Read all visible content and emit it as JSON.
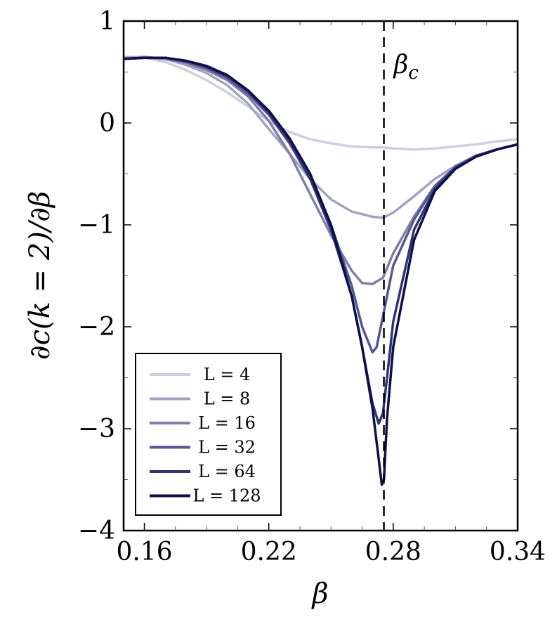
{
  "chart_data": {
    "type": "line",
    "xlabel": "β",
    "ylabel": "∂c(k = 2)/∂β",
    "xlim": [
      0.15,
      0.34
    ],
    "ylim": [
      -4,
      1
    ],
    "x_ticks": [
      0.16,
      0.22,
      0.28,
      0.34
    ],
    "x_tick_labels": [
      "0.16",
      "0.22",
      "0.28",
      "0.34"
    ],
    "y_ticks": [
      -4,
      -3,
      -2,
      -1,
      0,
      1
    ],
    "y_tick_labels": [
      "−4",
      "−3",
      "−2",
      "−1",
      "0",
      "1"
    ],
    "grid": false,
    "legend_position": "bottom-left",
    "annotation": {
      "text": "β",
      "subscript": "c",
      "x": 0.2755,
      "style": "dashed-vertical-line"
    },
    "series": [
      {
        "name": "L = 4",
        "color": "#cfcee0",
        "x": [
          0.15,
          0.16,
          0.17,
          0.18,
          0.19,
          0.2,
          0.21,
          0.22,
          0.23,
          0.24,
          0.25,
          0.26,
          0.27,
          0.275,
          0.28,
          0.29,
          0.3,
          0.31,
          0.32,
          0.33,
          0.34
        ],
        "y": [
          0.65,
          0.64,
          0.6,
          0.52,
          0.42,
          0.3,
          0.16,
          0.02,
          -0.09,
          -0.16,
          -0.2,
          -0.23,
          -0.24,
          -0.24,
          -0.25,
          -0.26,
          -0.25,
          -0.23,
          -0.21,
          -0.18,
          -0.16
        ]
      },
      {
        "name": "L = 8",
        "color": "#a3a2c0",
        "x": [
          0.15,
          0.16,
          0.17,
          0.18,
          0.19,
          0.2,
          0.21,
          0.22,
          0.23,
          0.24,
          0.25,
          0.26,
          0.27,
          0.275,
          0.28,
          0.29,
          0.3,
          0.31,
          0.32,
          0.33,
          0.34
        ],
        "y": [
          0.64,
          0.65,
          0.63,
          0.57,
          0.49,
          0.37,
          0.19,
          -0.06,
          -0.3,
          -0.55,
          -0.75,
          -0.87,
          -0.92,
          -0.93,
          -0.88,
          -0.72,
          -0.55,
          -0.42,
          -0.32,
          -0.26,
          -0.21
        ]
      },
      {
        "name": "L = 16",
        "color": "#7f7ea8",
        "x": [
          0.15,
          0.16,
          0.17,
          0.18,
          0.19,
          0.2,
          0.21,
          0.22,
          0.23,
          0.24,
          0.25,
          0.26,
          0.265,
          0.27,
          0.275,
          0.28,
          0.29,
          0.3,
          0.31,
          0.32,
          0.33,
          0.34
        ],
        "y": [
          0.63,
          0.64,
          0.63,
          0.59,
          0.52,
          0.42,
          0.26,
          0.02,
          -0.3,
          -0.7,
          -1.1,
          -1.45,
          -1.57,
          -1.58,
          -1.52,
          -1.28,
          -0.92,
          -0.62,
          -0.43,
          -0.32,
          -0.26,
          -0.21
        ]
      },
      {
        "name": "L = 32",
        "color": "#575790",
        "x": [
          0.15,
          0.16,
          0.17,
          0.18,
          0.19,
          0.2,
          0.21,
          0.22,
          0.23,
          0.24,
          0.25,
          0.26,
          0.265,
          0.27,
          0.272,
          0.275,
          0.278,
          0.28,
          0.29,
          0.3,
          0.31,
          0.32,
          0.33,
          0.34
        ],
        "y": [
          0.63,
          0.64,
          0.64,
          0.6,
          0.54,
          0.44,
          0.29,
          0.08,
          -0.2,
          -0.55,
          -1.0,
          -1.6,
          -2.0,
          -2.25,
          -2.2,
          -1.9,
          -1.6,
          -1.4,
          -0.95,
          -0.62,
          -0.43,
          -0.32,
          -0.26,
          -0.21
        ]
      },
      {
        "name": "L = 64",
        "color": "#33336f",
        "x": [
          0.15,
          0.16,
          0.17,
          0.18,
          0.19,
          0.2,
          0.21,
          0.22,
          0.23,
          0.24,
          0.25,
          0.26,
          0.265,
          0.27,
          0.273,
          0.275,
          0.277,
          0.28,
          0.29,
          0.3,
          0.31,
          0.32,
          0.33,
          0.34
        ],
        "y": [
          0.63,
          0.64,
          0.64,
          0.61,
          0.55,
          0.46,
          0.31,
          0.1,
          -0.18,
          -0.55,
          -1.05,
          -1.7,
          -2.2,
          -2.75,
          -2.95,
          -2.85,
          -2.5,
          -1.95,
          -1.05,
          -0.65,
          -0.44,
          -0.33,
          -0.26,
          -0.21
        ]
      },
      {
        "name": "L = 128",
        "color": "#0e0e4d",
        "x": [
          0.15,
          0.16,
          0.17,
          0.18,
          0.19,
          0.2,
          0.21,
          0.22,
          0.23,
          0.24,
          0.25,
          0.26,
          0.265,
          0.27,
          0.273,
          0.2745,
          0.2755,
          0.277,
          0.28,
          0.29,
          0.3,
          0.31,
          0.32,
          0.33,
          0.34
        ],
        "y": [
          0.63,
          0.64,
          0.64,
          0.61,
          0.56,
          0.47,
          0.32,
          0.12,
          -0.15,
          -0.5,
          -1.0,
          -1.7,
          -2.2,
          -2.8,
          -3.3,
          -3.55,
          -3.5,
          -2.9,
          -2.2,
          -1.15,
          -0.67,
          -0.45,
          -0.33,
          -0.26,
          -0.21
        ]
      }
    ]
  }
}
